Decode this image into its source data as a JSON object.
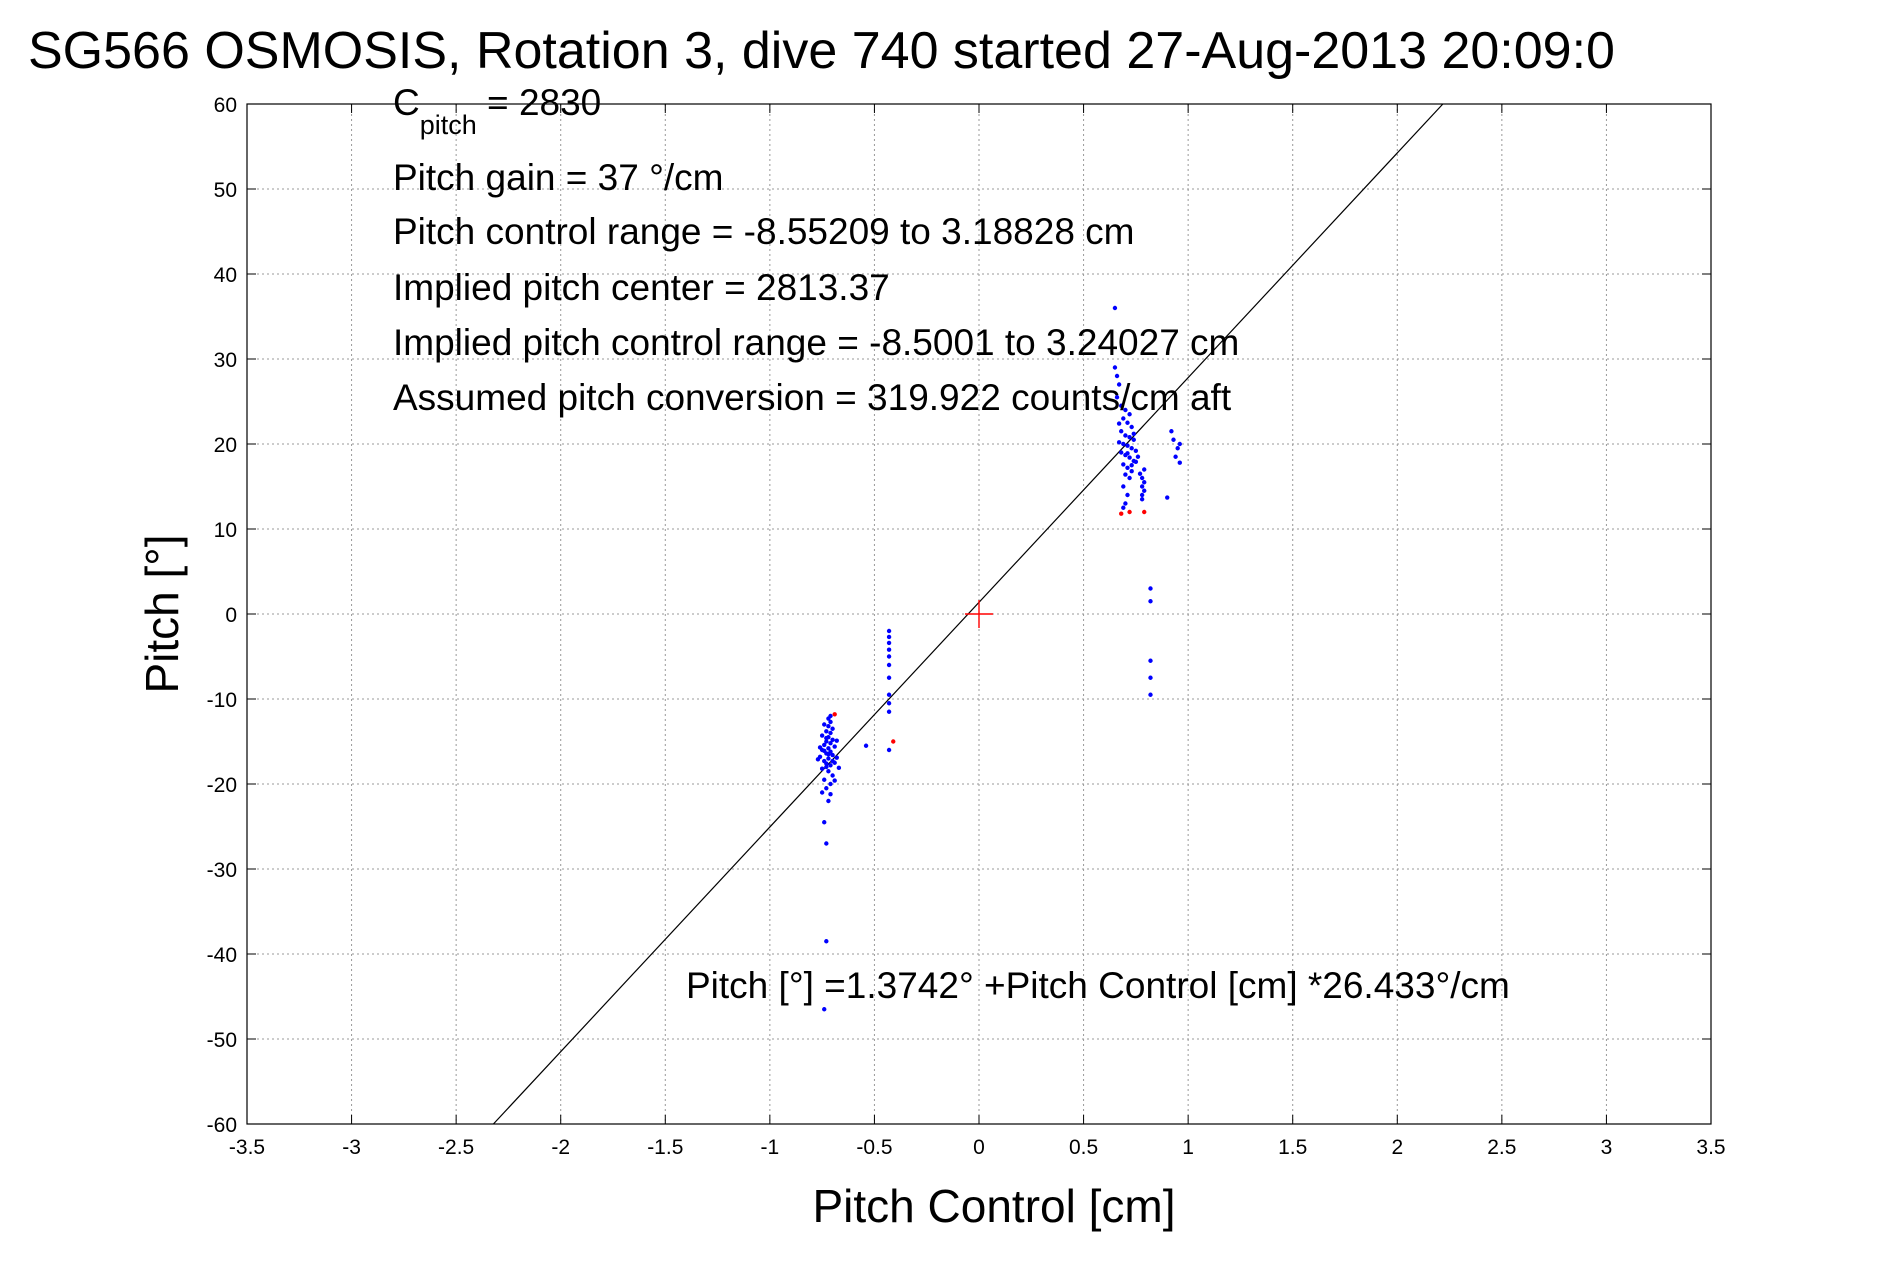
{
  "chart_data": {
    "type": "scatter",
    "title": "SG566 OSMOSIS, Rotation 3, dive 740 started 27-Aug-2013 20:09:0",
    "xlabel": "Pitch Control [cm]",
    "ylabel": "Pitch [°]",
    "xlim": [
      -3.5,
      3.5
    ],
    "ylim": [
      -60,
      60
    ],
    "grid": true,
    "x_ticks": [
      "-3.5",
      "-3",
      "-2.5",
      "-2",
      "-1.5",
      "-1",
      "-0.5",
      "0",
      "0.5",
      "1",
      "1.5",
      "2",
      "2.5",
      "3",
      "3.5"
    ],
    "y_ticks": [
      "60",
      "50",
      "40",
      "30",
      "20",
      "10",
      "0",
      "-10",
      "-20",
      "-30",
      "-40",
      "-50",
      "-60"
    ],
    "annotations": {
      "c_pitch_main": "C",
      "c_pitch_sub": "pitch",
      "c_pitch_value": " = 2830",
      "pitch_gain": "Pitch gain = 37 °/cm",
      "control_range": "Pitch control range = -8.55209 to 3.18828 cm",
      "implied_center": "Implied pitch center = 2813.37",
      "implied_range": "Implied pitch control range = -8.5001 to 3.24027 cm",
      "conversion": "Assumed pitch conversion = 319.922 counts/cm aft",
      "fit_equation": "Pitch [°] =1.3742° +Pitch Control [cm] *26.433°/cm"
    },
    "fit_line": {
      "intercept": 1.3742,
      "slope": 26.433,
      "color": "#000000"
    },
    "center_marker": {
      "x": 0,
      "y": 0,
      "color": "#ff0000"
    },
    "series": [
      {
        "color": "#0000ff",
        "points": [
          [
            -0.74,
            -46.5
          ],
          [
            -0.73,
            -38.5
          ],
          [
            -0.73,
            -27
          ],
          [
            -0.74,
            -24.5
          ],
          [
            -0.72,
            -22
          ],
          [
            -0.75,
            -21
          ],
          [
            -0.73,
            -20.5
          ],
          [
            -0.71,
            -20
          ],
          [
            -0.74,
            -19.5
          ],
          [
            -0.7,
            -19
          ],
          [
            -0.72,
            -18.5
          ],
          [
            -0.75,
            -18.2
          ],
          [
            -0.73,
            -18
          ],
          [
            -0.71,
            -17.8
          ],
          [
            -0.69,
            -17.5
          ],
          [
            -0.74,
            -17.3
          ],
          [
            -0.72,
            -17
          ],
          [
            -0.76,
            -16.8
          ],
          [
            -0.7,
            -16.6
          ],
          [
            -0.73,
            -16.4
          ],
          [
            -0.71,
            -16.2
          ],
          [
            -0.75,
            -16
          ],
          [
            -0.72,
            -15.8
          ],
          [
            -0.69,
            -15.6
          ],
          [
            -0.74,
            -15.4
          ],
          [
            -0.71,
            -15.2
          ],
          [
            -0.73,
            -15
          ],
          [
            -0.7,
            -14.8
          ],
          [
            -0.72,
            -14.5
          ],
          [
            -0.75,
            -14.3
          ],
          [
            -0.71,
            -14
          ],
          [
            -0.73,
            -13.8
          ],
          [
            -0.7,
            -13.5
          ],
          [
            -0.72,
            -13.2
          ],
          [
            -0.74,
            -13
          ],
          [
            -0.71,
            -12.7
          ],
          [
            -0.72,
            -12.3
          ],
          [
            -0.71,
            -12
          ],
          [
            -0.73,
            -17.6
          ],
          [
            -0.68,
            -16.9
          ],
          [
            -0.67,
            -18.1
          ],
          [
            -0.77,
            -17.1
          ],
          [
            -0.76,
            -15.7
          ],
          [
            -0.68,
            -14.9
          ],
          [
            -0.69,
            -19.6
          ],
          [
            -0.71,
            -21.2
          ],
          [
            -0.74,
            -16.1
          ],
          [
            -0.7,
            -17.3
          ],
          [
            -0.72,
            -16.5
          ],
          [
            -0.73,
            -14.6
          ],
          [
            -0.54,
            -15.5
          ],
          [
            -0.43,
            -2
          ],
          [
            -0.43,
            -2.7
          ],
          [
            -0.43,
            -3.4
          ],
          [
            -0.43,
            -4.2
          ],
          [
            -0.43,
            -5
          ],
          [
            -0.43,
            -6
          ],
          [
            -0.43,
            -7.5
          ],
          [
            -0.43,
            -9.5
          ],
          [
            -0.43,
            -10.5
          ],
          [
            -0.43,
            -11.5
          ],
          [
            -0.43,
            -16
          ],
          [
            0.65,
            36
          ],
          [
            0.65,
            29
          ],
          [
            0.66,
            28
          ],
          [
            0.67,
            27
          ],
          [
            0.66,
            25.5
          ],
          [
            0.68,
            24.5
          ],
          [
            0.7,
            24
          ],
          [
            0.72,
            23.5
          ],
          [
            0.69,
            23
          ],
          [
            0.71,
            22.5
          ],
          [
            0.73,
            22
          ],
          [
            0.68,
            21.5
          ],
          [
            0.7,
            21
          ],
          [
            0.72,
            20.8
          ],
          [
            0.74,
            20.5
          ],
          [
            0.67,
            20.2
          ],
          [
            0.69,
            20
          ],
          [
            0.71,
            19.8
          ],
          [
            0.73,
            19.5
          ],
          [
            0.75,
            19.2
          ],
          [
            0.68,
            19
          ],
          [
            0.7,
            18.7
          ],
          [
            0.72,
            18.4
          ],
          [
            0.74,
            18
          ],
          [
            0.69,
            17.6
          ],
          [
            0.71,
            17.2
          ],
          [
            0.73,
            16.8
          ],
          [
            0.7,
            16.4
          ],
          [
            0.72,
            16
          ],
          [
            0.69,
            15
          ],
          [
            0.71,
            14
          ],
          [
            0.7,
            13
          ],
          [
            0.69,
            12.5
          ],
          [
            0.73,
            17.5
          ],
          [
            0.76,
            18.5
          ],
          [
            0.77,
            16.5
          ],
          [
            0.78,
            16
          ],
          [
            0.79,
            15.5
          ],
          [
            0.78,
            15
          ],
          [
            0.79,
            14.5
          ],
          [
            0.78,
            14
          ],
          [
            0.79,
            17
          ],
          [
            0.78,
            13.5
          ],
          [
            0.92,
            21.5
          ],
          [
            0.93,
            20.5
          ],
          [
            0.95,
            19.5
          ],
          [
            0.94,
            18.5
          ],
          [
            0.96,
            17.8
          ],
          [
            0.9,
            13.7
          ],
          [
            0.96,
            20
          ],
          [
            0.82,
            3
          ],
          [
            0.82,
            1.5
          ],
          [
            0.82,
            -5.5
          ],
          [
            0.82,
            -7.5
          ],
          [
            0.82,
            -9.5
          ],
          [
            0.74,
            21.2
          ],
          [
            0.71,
            18.9
          ],
          [
            0.67,
            22.4
          ],
          [
            0.75,
            17.9
          ]
        ]
      },
      {
        "color": "#ff0000",
        "points": [
          [
            -0.69,
            -11.8
          ],
          [
            -0.41,
            -15
          ],
          [
            0.68,
            11.8
          ],
          [
            0.72,
            12
          ],
          [
            0.79,
            12
          ]
        ]
      }
    ]
  }
}
